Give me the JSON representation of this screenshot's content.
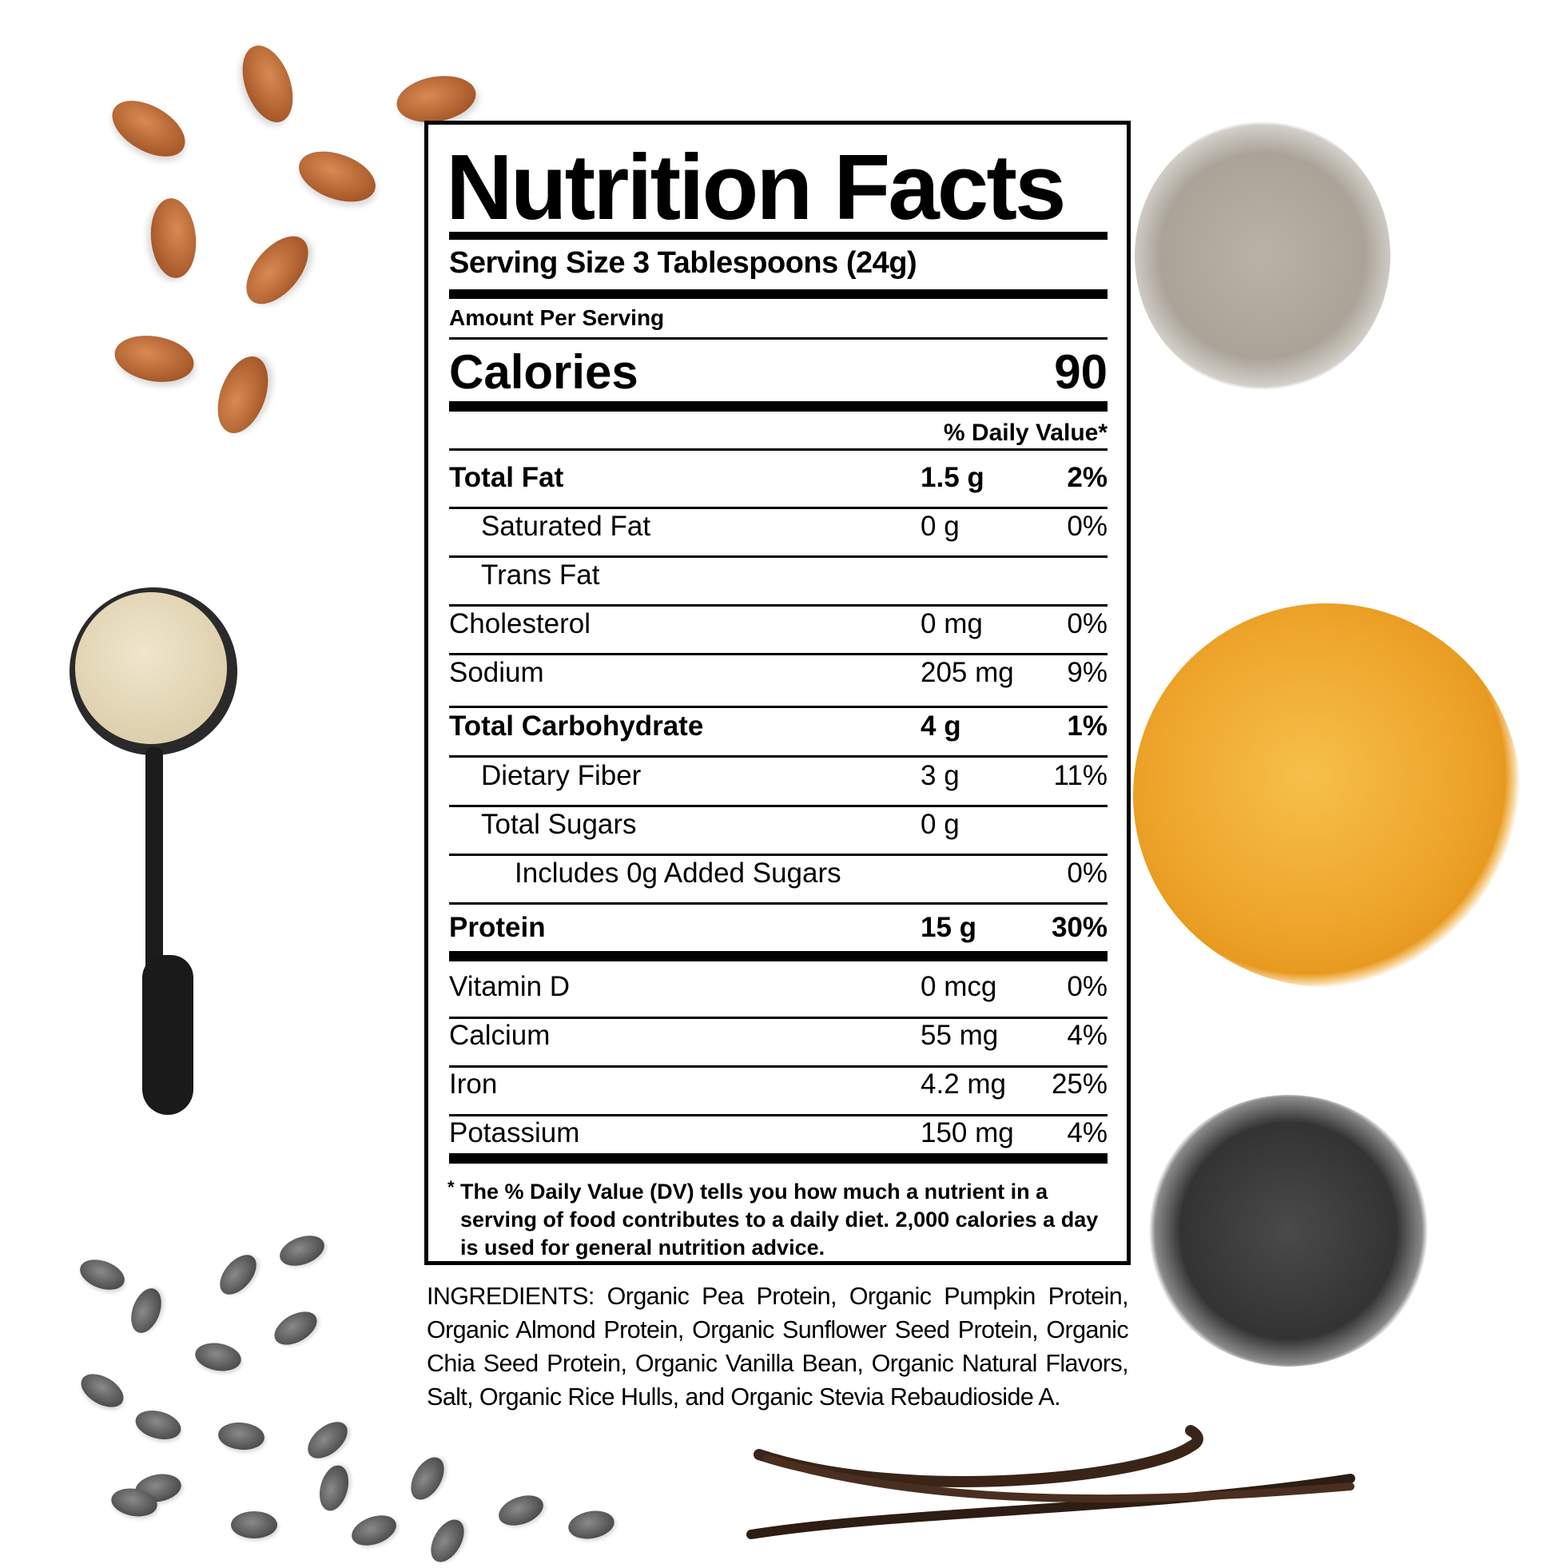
{
  "label": {
    "title": "Nutrition Facts",
    "serving_size": "Serving Size 3 Tablespoons (24g)",
    "amount_per_serving": "Amount Per Serving",
    "calories_label": "Calories",
    "calories_value": "90",
    "dv_header": "% Daily Value*",
    "nutrients": [
      {
        "label": "Total Fat",
        "amount": "1.5 g",
        "dv": "2%",
        "bold": true,
        "indent": 0
      },
      {
        "label": "Saturated Fat",
        "amount": "0 g",
        "dv": "0%",
        "bold": false,
        "indent": 1
      },
      {
        "label": "Trans Fat",
        "amount": "",
        "dv": "",
        "bold": false,
        "indent": 1
      },
      {
        "label": "Cholesterol",
        "amount": "0 mg",
        "dv": "0%",
        "bold": false,
        "indent": 0
      },
      {
        "label": "Sodium",
        "amount": "205 mg",
        "dv": "9%",
        "bold": false,
        "indent": 0
      },
      {
        "label": "Total Carbohydrate",
        "amount": "4 g",
        "dv": "1%",
        "bold": true,
        "indent": 0
      },
      {
        "label": "Dietary Fiber",
        "amount": "3 g",
        "dv": "11%",
        "bold": false,
        "indent": 1
      },
      {
        "label": "Total Sugars",
        "amount": "0 g",
        "dv": "",
        "bold": false,
        "indent": 1
      },
      {
        "label": "Includes 0g Added Sugars",
        "amount": "",
        "dv": "0%",
        "bold": false,
        "indent": 2
      },
      {
        "label": "Protein",
        "amount": "15 g",
        "dv": "30%",
        "bold": true,
        "indent": 0
      }
    ],
    "vitamins": [
      {
        "label": "Vitamin D",
        "amount": "0 mcg",
        "dv": "0%"
      },
      {
        "label": "Calcium",
        "amount": "55 mg",
        "dv": "4%"
      },
      {
        "label": "Iron",
        "amount": "4.2 mg",
        "dv": "25%"
      },
      {
        "label": "Potassium",
        "amount": "150 mg",
        "dv": "4%"
      }
    ],
    "footnote_mark": "*",
    "footnote": "The % Daily Value (DV) tells you how much a nutrient in a serving of food contributes to a daily diet. 2,000 calories a day is used for general nutrition advice."
  },
  "ingredients": "INGREDIENTS: Organic Pea Protein, Organic Pumpkin Protein, Organic Almond Protein, Organic Sunflower Seed Protein, Organic Chia Seed Protein, Organic Vanilla Bean, Organic Natural Flavors, Salt, Organic Rice Hulls, and Organic Stevia Rebaudioside A.",
  "decorations": {
    "items": [
      "almonds",
      "sunflower-seeds",
      "protein-powder-scoop",
      "yellow-split-peas",
      "chia-seeds",
      "pumpkin-seeds",
      "vanilla-beans"
    ],
    "colors": {
      "almond": "#a85a2a",
      "sunflower": "#b5aea3",
      "pea": "#f0a830",
      "chia": "#3a3a3a",
      "pumpkin_seed": "#5a5a5a",
      "vanilla": "#3a2418",
      "powder": "#e8dcc0"
    }
  }
}
